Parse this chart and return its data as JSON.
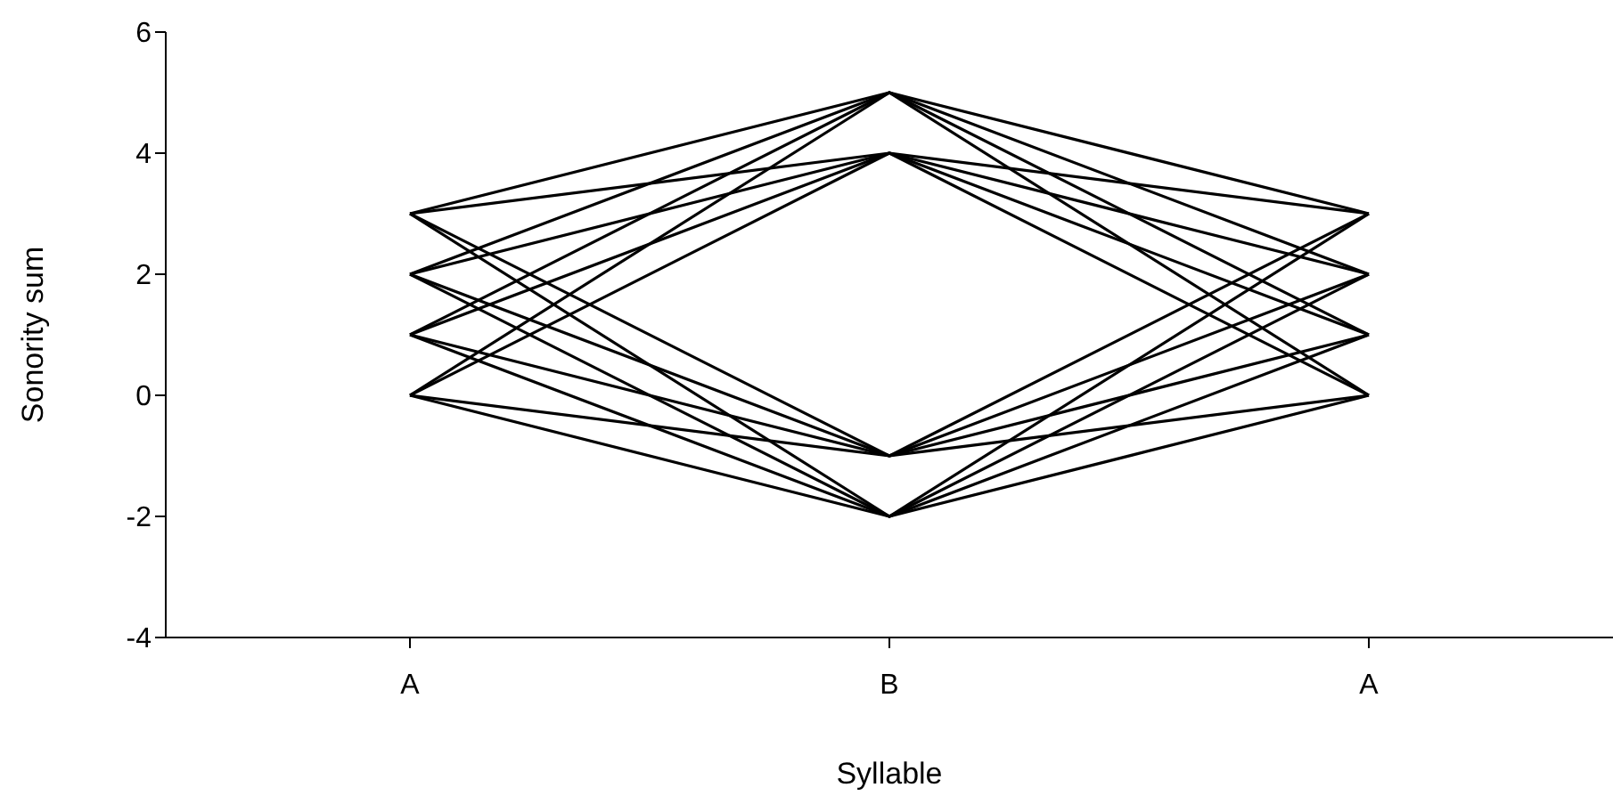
{
  "chart_data": {
    "type": "line",
    "xlabel": "Syllable",
    "ylabel": "Sonority sum",
    "categories": [
      "A",
      "B",
      "A"
    ],
    "ylim": [
      -4,
      6
    ],
    "yticks": [
      -4,
      -2,
      0,
      2,
      4,
      6
    ],
    "grid": false,
    "marker": "none",
    "line_style": "solid",
    "series": [
      {
        "color": "#000000",
        "values": [
          0,
          5,
          0
        ]
      },
      {
        "color": "#000000",
        "values": [
          0,
          4,
          0
        ]
      },
      {
        "color": "#000000",
        "values": [
          0,
          -1,
          0
        ]
      },
      {
        "color": "#000000",
        "values": [
          0,
          -2,
          0
        ]
      },
      {
        "color": "#000000",
        "values": [
          1,
          5,
          1
        ]
      },
      {
        "color": "#000000",
        "values": [
          1,
          4,
          1
        ]
      },
      {
        "color": "#000000",
        "values": [
          1,
          -1,
          1
        ]
      },
      {
        "color": "#000000",
        "values": [
          1,
          -2,
          1
        ]
      },
      {
        "color": "#000000",
        "values": [
          2,
          5,
          2
        ]
      },
      {
        "color": "#000000",
        "values": [
          2,
          4,
          2
        ]
      },
      {
        "color": "#000000",
        "values": [
          2,
          -1,
          2
        ]
      },
      {
        "color": "#000000",
        "values": [
          2,
          -2,
          2
        ]
      },
      {
        "color": "#000000",
        "values": [
          3,
          5,
          3
        ]
      },
      {
        "color": "#000000",
        "values": [
          3,
          4,
          3
        ]
      },
      {
        "color": "#000000",
        "values": [
          3,
          -1,
          3
        ]
      },
      {
        "color": "#000000",
        "values": [
          3,
          -2,
          3
        ]
      }
    ]
  }
}
